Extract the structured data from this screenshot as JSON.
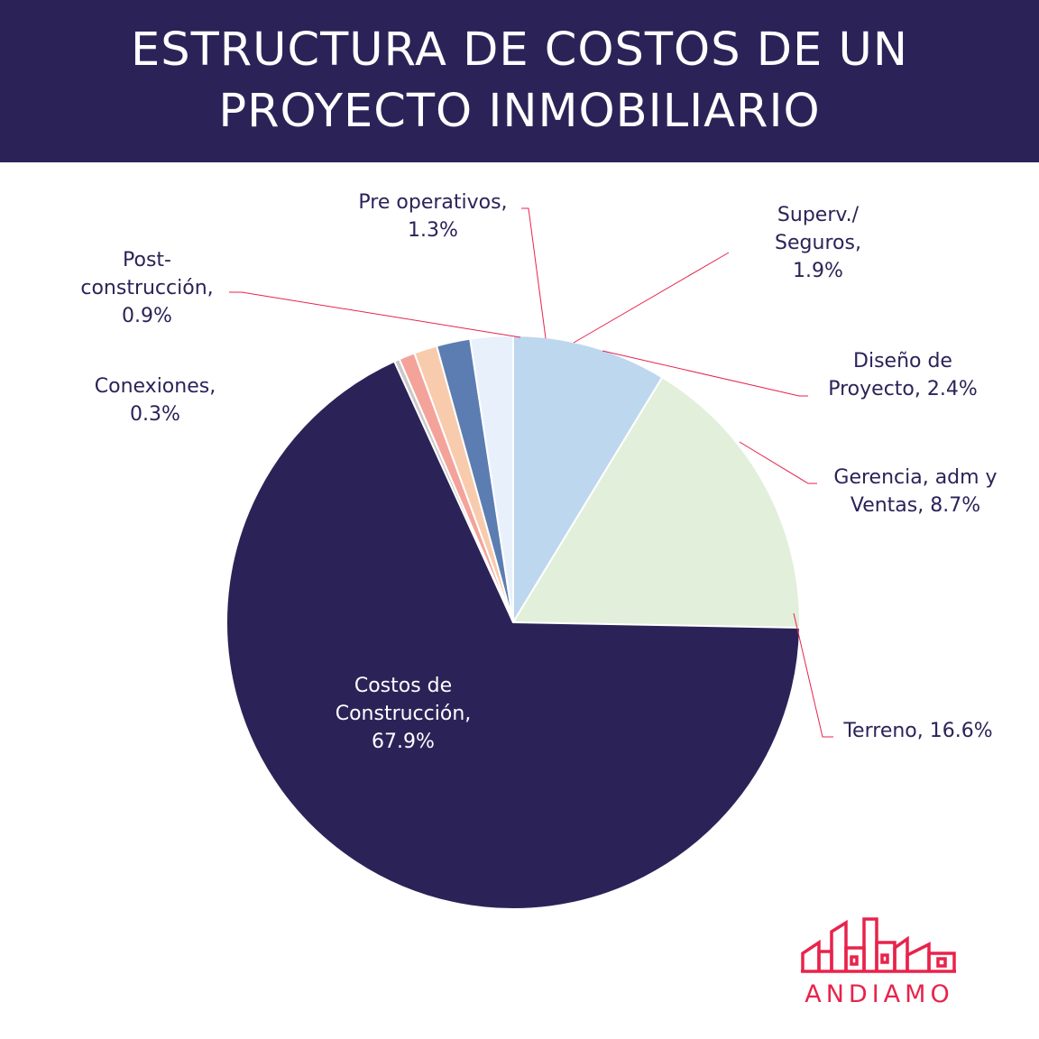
{
  "header": {
    "title_line1": "ESTRUCTURA DE COSTOS DE UN",
    "title_line2": "PROYECTO INMOBILIARIO"
  },
  "chart_data": {
    "type": "pie",
    "title": "ESTRUCTURA DE COSTOS DE UN PROYECTO INMOBILIARIO",
    "start_angle_deg": 0,
    "direction": "clockwise",
    "slices": [
      {
        "label": "Gerencia, adm y Ventas",
        "value": 8.7,
        "color": "#bdd7ee",
        "label_lines": [
          "Gerencia, adm y",
          "Ventas, 8.7%"
        ]
      },
      {
        "label": "Terreno",
        "value": 16.6,
        "color": "#e2efda",
        "label_lines": [
          "Terreno, 16.6%"
        ]
      },
      {
        "label": "Costos de Construcción",
        "value": 67.9,
        "color": "#2b2358",
        "label_lines": [
          "Costos de",
          "Construcción,",
          "67.9%"
        ]
      },
      {
        "label": "Conexiones",
        "value": 0.3,
        "color": "#c9c9c9",
        "label_lines": [
          "Conexiones,",
          "0.3%"
        ]
      },
      {
        "label": "Post-construcción",
        "value": 0.9,
        "color": "#f4a39a",
        "label_lines": [
          "Post-",
          "construcción,",
          "0.9%"
        ]
      },
      {
        "label": "Pre operativos",
        "value": 1.3,
        "color": "#f8cbad",
        "label_lines": [
          "Pre operativos,",
          "1.3%"
        ]
      },
      {
        "label": "Superv./ Seguros",
        "value": 1.9,
        "color": "#5b7db1",
        "label_lines": [
          "Superv./",
          "Seguros,",
          "1.9%"
        ]
      },
      {
        "label": "Diseño de Proyecto",
        "value": 2.4,
        "color": "#e8f0fb",
        "label_lines": [
          "Diseño  de",
          "Proyecto, 2.4%"
        ]
      }
    ],
    "leader_line_color": "#e8234b"
  },
  "brand": {
    "name": "ANDIAMO",
    "color": "#e8234b",
    "logo_icon": "buildings-outline-icon"
  }
}
